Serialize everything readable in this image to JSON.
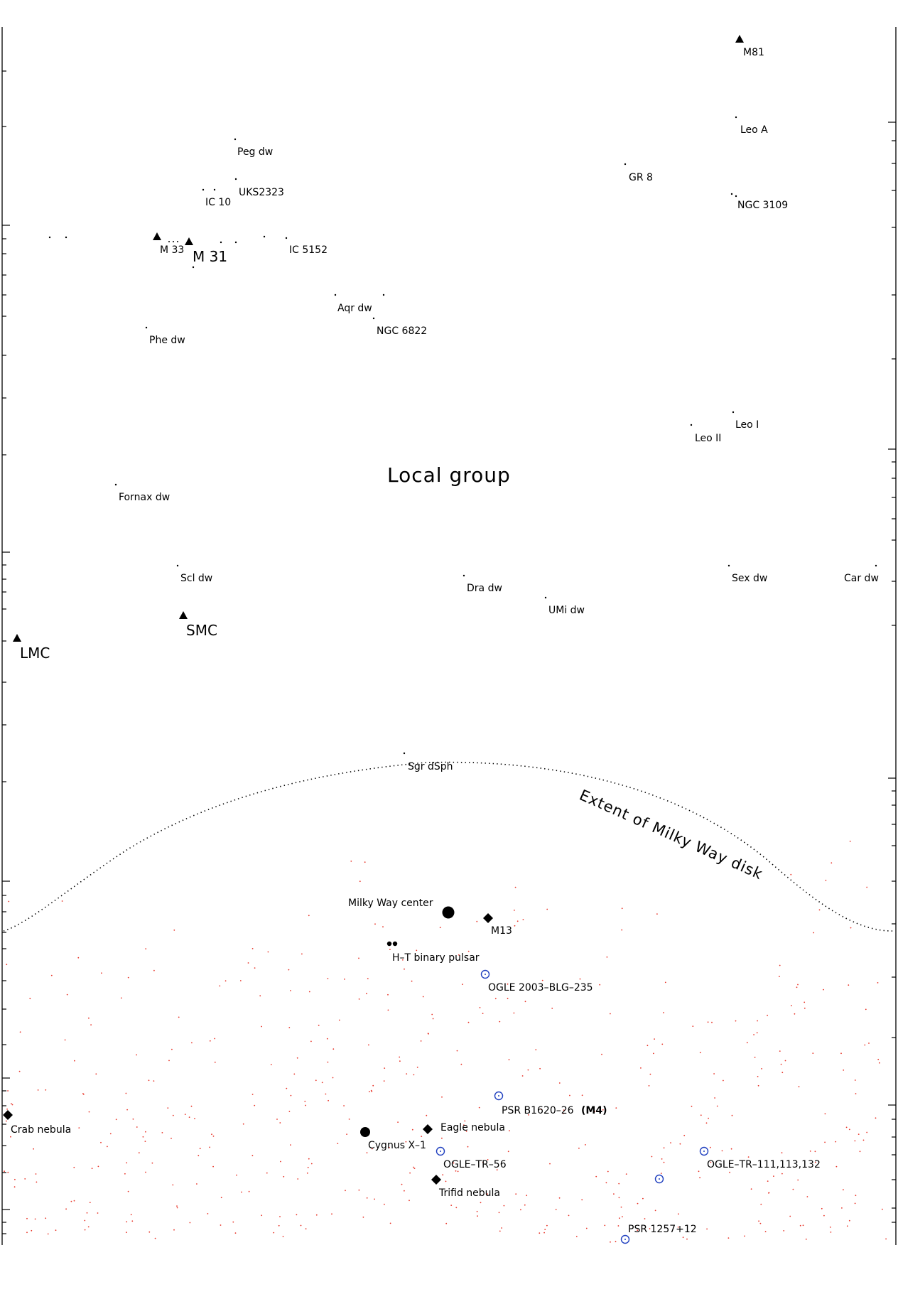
{
  "title": "Local group",
  "disk_label": "Extent of Milky Way disk",
  "colors": {
    "ink": "#000000",
    "planet_marker": "#1f3fbf",
    "star_dot": "#e8362a"
  },
  "objects": {
    "m81": "M81",
    "leo_a": "Leo A",
    "peg_dw": "Peg dw",
    "gr8": "GR 8",
    "uks2323": "UKS2323",
    "ic10": "IC 10",
    "ngc3109": "NGC 3109",
    "m33": "M 33",
    "m31": "M 31",
    "ic5152": "IC 5152",
    "aqr_dw": "Aqr dw",
    "ngc6822": "NGC 6822",
    "phe_dw": "Phe dw",
    "leo_i": "Leo I",
    "leo_ii": "Leo II",
    "fornax_dw": "Fornax dw",
    "scl_dw": "Scl dw",
    "dra_dw": "Dra dw",
    "sex_dw": "Sex dw",
    "car_dw": "Car dw",
    "umi_dw": "UMi dw",
    "smc": "SMC",
    "lmc": "LMC",
    "sgr_dsph": "Sgr dSph",
    "mw_center": "Milky Way center",
    "m13": "M13",
    "ht_pulsar": "H–T binary pulsar",
    "ogle_235": "OGLE 2003–BLG–235",
    "psr_b1620": "PSR B1620–26",
    "psr_b1620_suffix": "(M4)",
    "crab": "Crab nebula",
    "eagle": "Eagle nebula",
    "cygnus": "Cygnus X–1",
    "ogle_tr56": "OGLE–TR–56",
    "ogle_tr111": "OGLE–TR–111,113,132",
    "trifid": "Trifid nebula",
    "psr_1257": "PSR 1257+12"
  }
}
